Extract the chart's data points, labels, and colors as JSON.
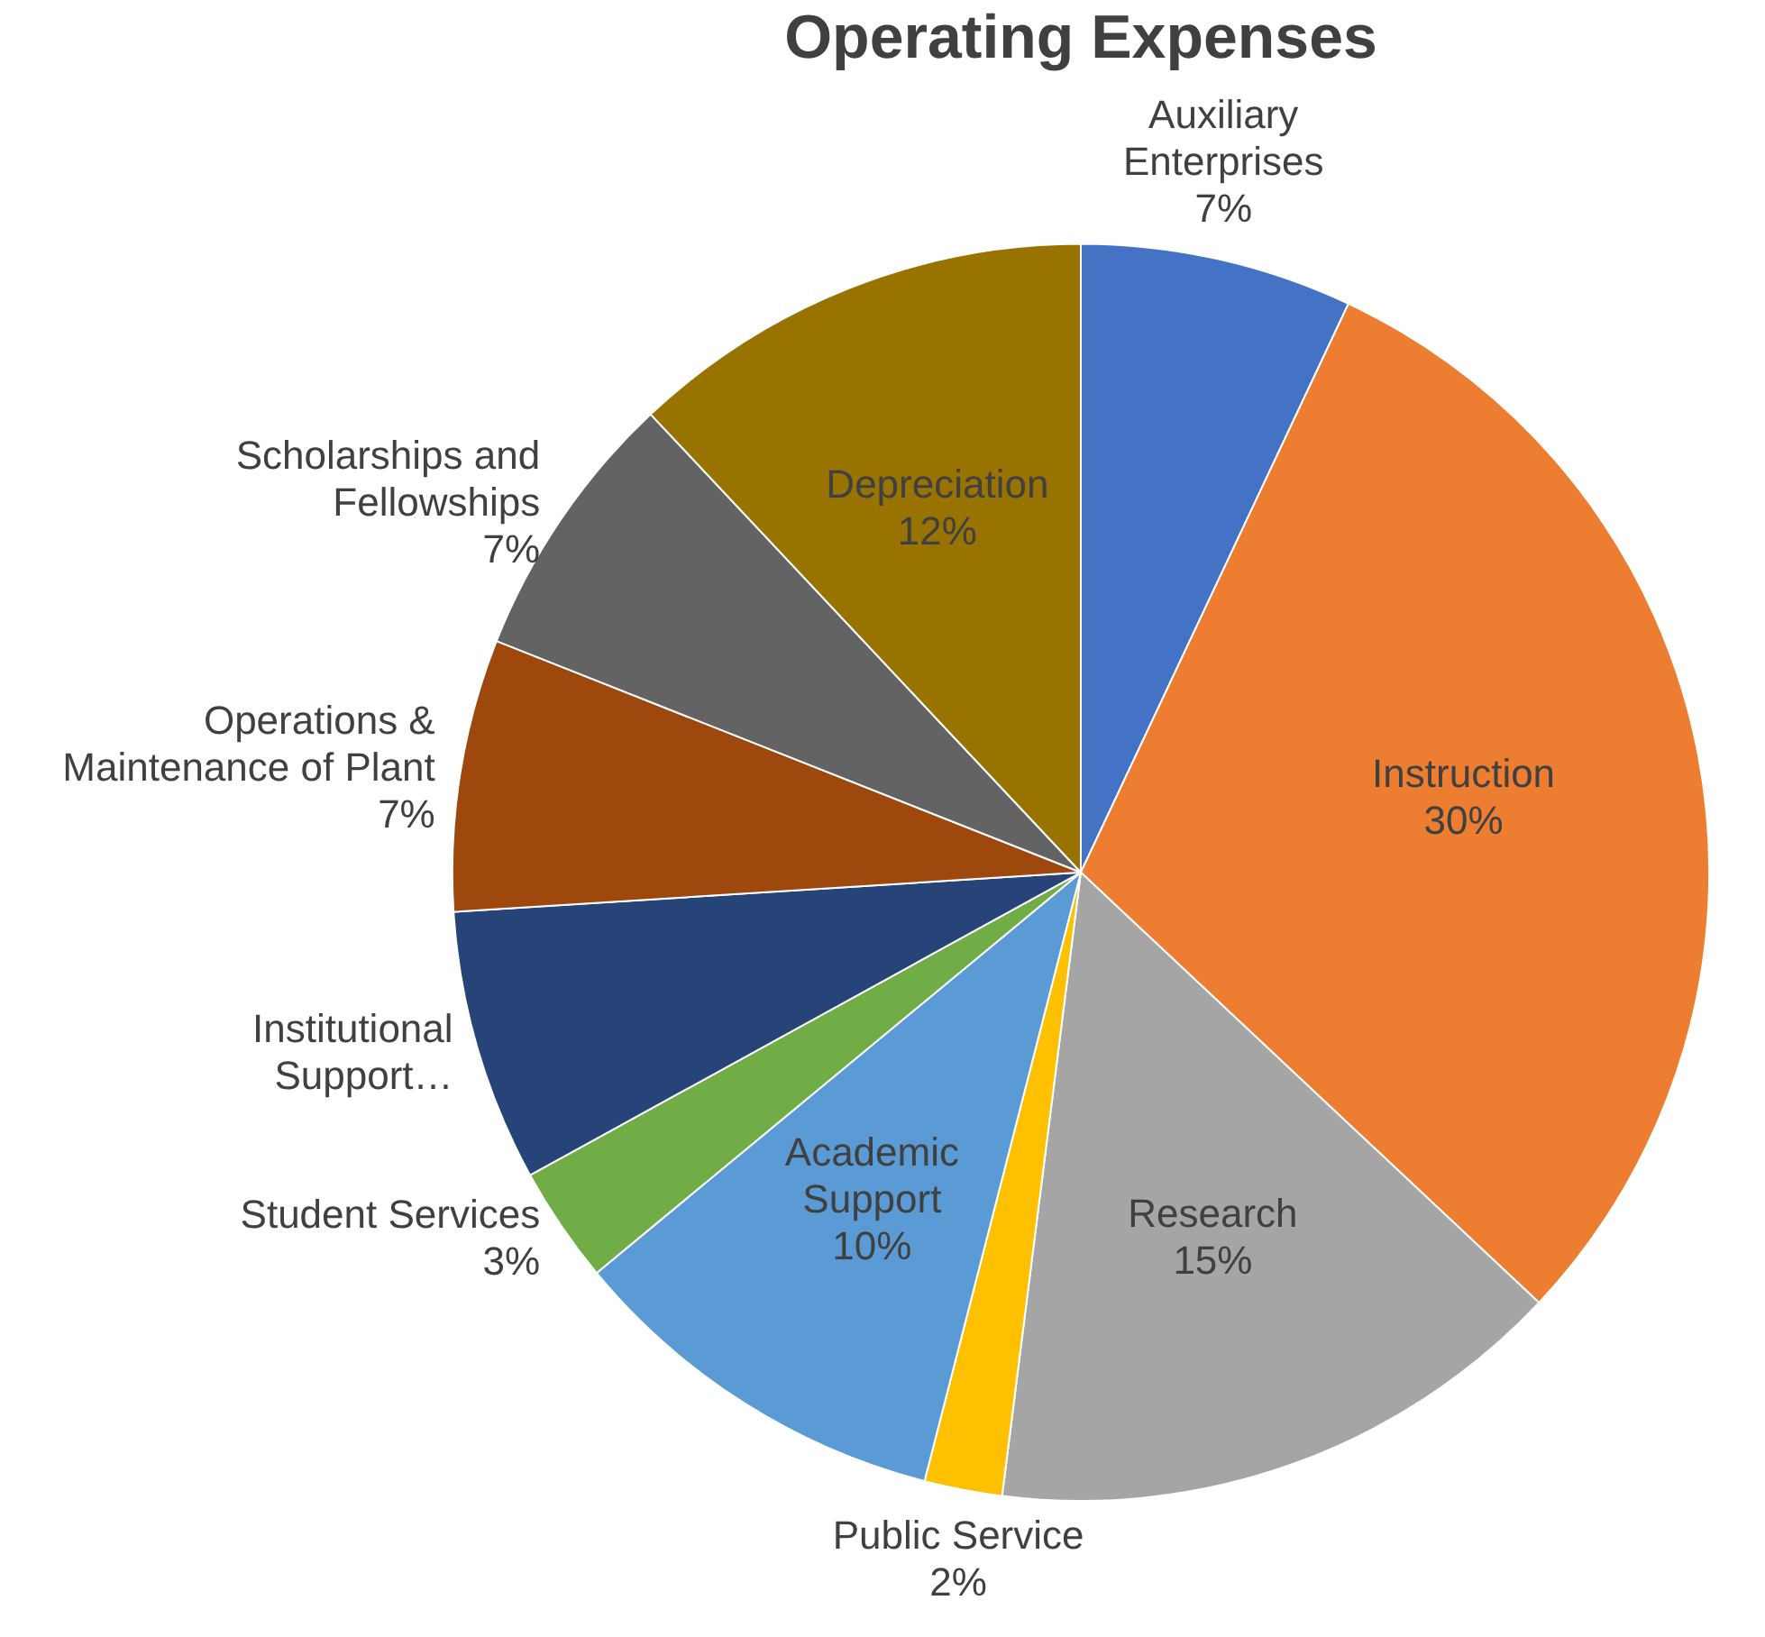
{
  "chart_data": {
    "type": "pie",
    "title": "Operating Expenses",
    "categories": [
      "Auxiliary Enterprises",
      "Instruction",
      "Research",
      "Public Service",
      "Academic Support",
      "Student Services",
      "Institutional Support…",
      "Operations & Maintenance of Plant",
      "Scholarships and Fellowships",
      "Depreciation"
    ],
    "values": [
      7,
      30,
      15,
      2,
      10,
      3,
      7,
      7,
      7,
      12
    ],
    "colors": [
      "#4472c4",
      "#ed7d31",
      "#a5a5a5",
      "#ffc000",
      "#5b9bd5",
      "#70ad47",
      "#264478",
      "#9e480e",
      "#636363",
      "#997300"
    ],
    "value_labels": [
      "7%",
      "30%",
      "15%",
      "2%",
      "10%",
      "3%",
      null,
      "7%",
      "7%",
      "12%"
    ],
    "legend": false
  }
}
